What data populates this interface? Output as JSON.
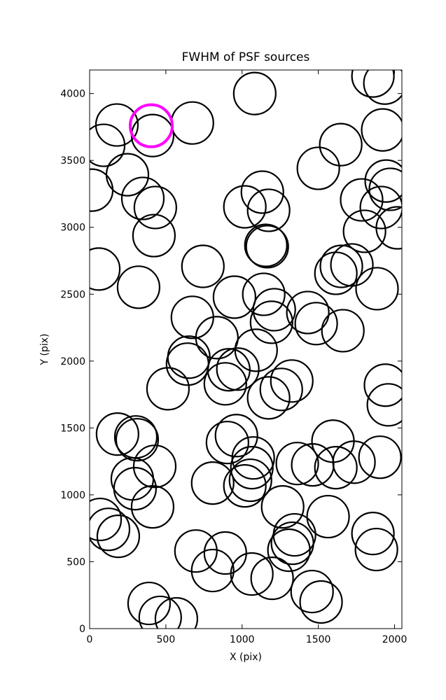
{
  "chart_data": {
    "type": "scatter",
    "title": "FWHM of PSF sources",
    "x_label": "X (pix)",
    "y_label": "Y (pix)",
    "xlim": [
      0,
      2048
    ],
    "ylim": [
      0,
      4176
    ],
    "xticks": [
      0,
      500,
      1000,
      1500,
      2000
    ],
    "yticks": [
      0,
      500,
      1000,
      1500,
      2000,
      2500,
      3000,
      3500,
      4000
    ],
    "grid": false,
    "series": [
      {
        "color": "#000000",
        "x": [
          1083,
          1858,
          1936,
          179,
          413,
          674,
          92,
          1922,
          1647,
          1500,
          248,
          14,
          349,
          431,
          1133,
          1018,
          1174,
          1784,
          1945,
          1972,
          1913,
          2018,
          422,
          1803,
          1156,
          1165,
          60,
          743,
          1615,
          1651,
          1720,
          321,
          1885,
          1142,
          950,
          1211,
          1431,
          1486,
          1193,
          674,
          1661,
          835,
          1092,
          651,
          642,
          913,
          972,
          890,
          1326,
          1257,
          1174,
          514,
          1940,
          1959,
          183,
          303,
          312,
          963,
          904,
          1073,
          1064,
          1055,
          1018,
          427,
          280,
          298,
          807,
          1596,
          1362,
          1463,
          1615,
          1734,
          1904,
          413,
          1266,
          1564,
          69,
          124,
          188,
          1344,
          1330,
          1307,
          1858,
          1881,
          697,
          890,
          807,
          1064,
          1197,
          1459,
          1518,
          390,
          463,
          569
        ],
        "values": [
          4000,
          4131,
          4078,
          3765,
          3686,
          3780,
          3613,
          3728,
          3618,
          3441,
          3393,
          3278,
          3216,
          3148,
          3263,
          3153,
          3127,
          3205,
          3346,
          3284,
          3148,
          2996,
          2938,
          2970,
          2865,
          2855,
          2688,
          2708,
          2656,
          2708,
          2719,
          2552,
          2541,
          2499,
          2478,
          2384,
          2363,
          2280,
          2290,
          2327,
          2227,
          2175,
          2081,
          2029,
          1977,
          1935,
          1940,
          1830,
          1851,
          1788,
          1725,
          1793,
          1820,
          1673,
          1454,
          1433,
          1412,
          1443,
          1391,
          1276,
          1203,
          1109,
          1067,
          1213,
          1119,
          1046,
          1088,
          1401,
          1234,
          1224,
          1203,
          1244,
          1281,
          910,
          910,
          837,
          816,
          742,
          690,
          701,
          638,
          586,
          711,
          591,
          580,
          565,
          434,
          408,
          376,
          277,
          199,
          188,
          84,
          73
        ]
      },
      {
        "color": "#ff00ff",
        "x": [
          404
        ],
        "values": [
          3759
        ]
      }
    ]
  }
}
